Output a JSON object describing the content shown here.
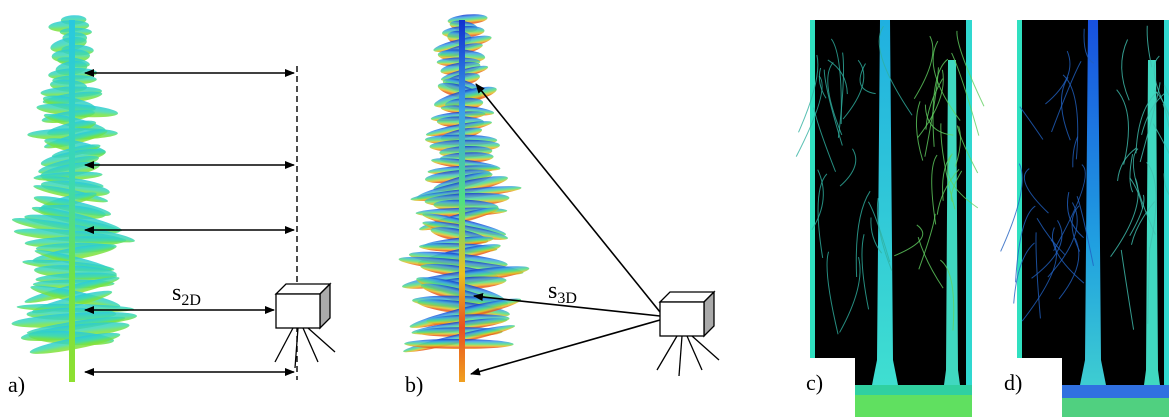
{
  "panels": [
    {
      "label": "a)",
      "distance": {
        "symbol": "s",
        "subscript": "2D"
      }
    },
    {
      "label": "b)",
      "distance": {
        "symbol": "s",
        "subscript": "3D"
      }
    },
    {
      "label": "c)"
    },
    {
      "label": "d)"
    }
  ]
}
